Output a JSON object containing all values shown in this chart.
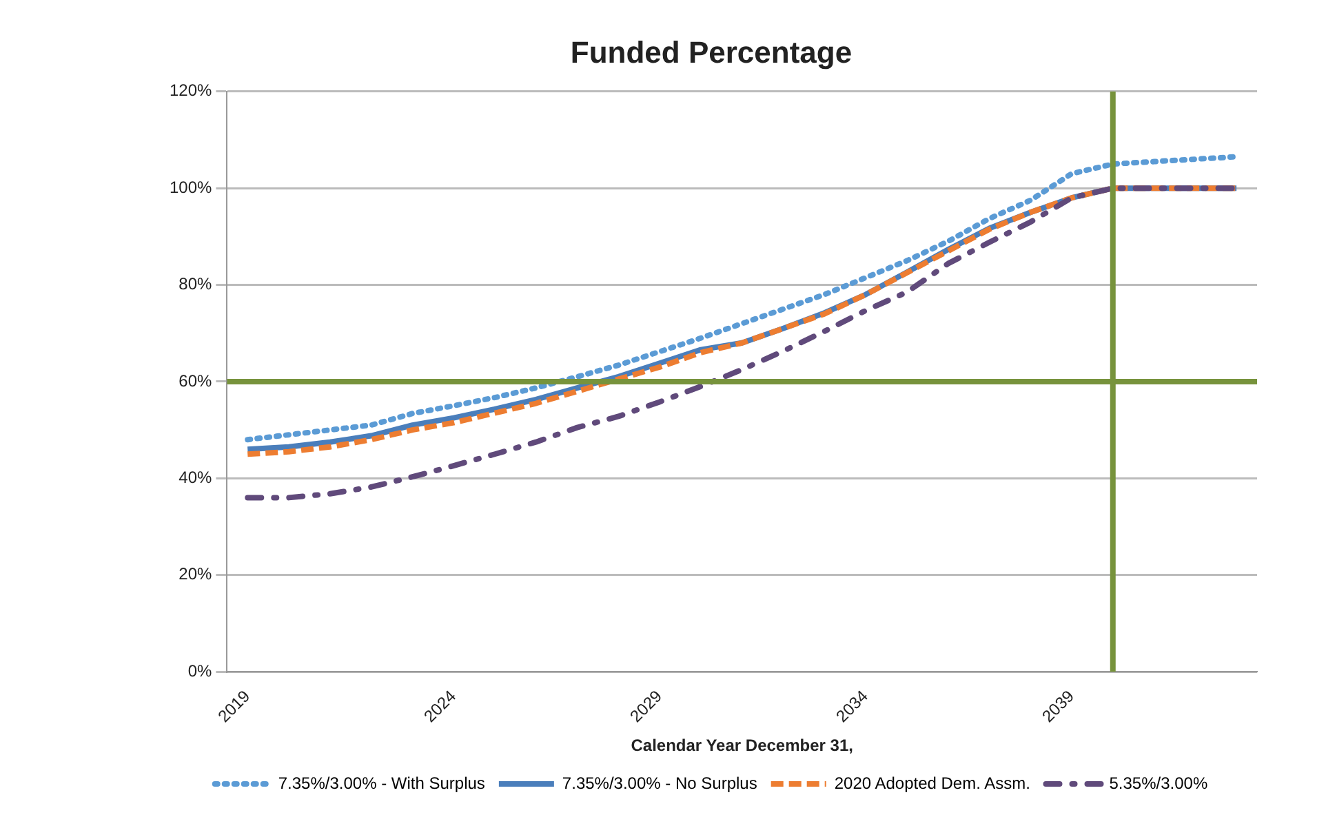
{
  "chart_data": {
    "type": "line",
    "title": "Funded Percentage",
    "xlabel": "Calendar Year December 31,",
    "x": [
      2019,
      2020,
      2021,
      2022,
      2023,
      2024,
      2025,
      2026,
      2027,
      2028,
      2029,
      2030,
      2031,
      2032,
      2033,
      2034,
      2035,
      2036,
      2037,
      2038,
      2039,
      2040,
      2041,
      2042,
      2043
    ],
    "series": [
      {
        "name": "7.35%/3.00% - With Surplus",
        "color": "#5b9bd5",
        "line_style": "dotted",
        "values": [
          48,
          49,
          50,
          51,
          53.4,
          55,
          56.7,
          58.7,
          61,
          63.4,
          66.2,
          69,
          72,
          75,
          78,
          81.5,
          85,
          89,
          93.7,
          97.5,
          103,
          105,
          105.5,
          106,
          106.5
        ]
      },
      {
        "name": "7.35%/3.00% - No Surplus",
        "color": "#4a7ebb",
        "line_style": "solid",
        "values": [
          46,
          46.5,
          47.5,
          48.8,
          51,
          52.5,
          54.3,
          56.3,
          58.7,
          61,
          63.8,
          66.6,
          68,
          71,
          74.2,
          78,
          82.6,
          87.3,
          91.7,
          95,
          98,
          100,
          100,
          100,
          100
        ]
      },
      {
        "name": "2020 Adopted Dem. Assm.",
        "color": "#ed7d31",
        "line_style": "dashed",
        "values": [
          45,
          45.5,
          46.5,
          48,
          50,
          51.5,
          53.5,
          55.5,
          58,
          60.5,
          63,
          66,
          68,
          71,
          74,
          78,
          82.5,
          87,
          91.5,
          95,
          98,
          100,
          100,
          100,
          100
        ]
      },
      {
        "name": "5.35%/3.00%",
        "color": "#604a7b",
        "line_style": "dashdot",
        "values": [
          36,
          36,
          36.8,
          38.2,
          40.3,
          42.6,
          45,
          47.5,
          50.5,
          52.8,
          55.8,
          59,
          62.5,
          66.3,
          70.4,
          74.7,
          78.5,
          84.4,
          88.8,
          93,
          98,
          100,
          100,
          100,
          100
        ]
      }
    ],
    "xlim": [
      2018.5,
      2043.5
    ],
    "xticks": [
      2019,
      2024,
      2029,
      2034,
      2039
    ],
    "ylim": [
      0,
      120
    ],
    "yticks": [
      {
        "value": 0,
        "label": "0%"
      },
      {
        "value": 20,
        "label": "20%"
      },
      {
        "value": 40,
        "label": "40%"
      },
      {
        "value": 60,
        "label": "60%"
      },
      {
        "value": 80,
        "label": "80%"
      },
      {
        "value": 100,
        "label": "100%"
      },
      {
        "value": 120,
        "label": "120%"
      }
    ],
    "ref_lines": [
      {
        "axis": "y",
        "value": 60,
        "color": "#77933c"
      },
      {
        "axis": "x",
        "value": 2040,
        "color": "#77933c"
      }
    ],
    "grid": "y",
    "legend": "bottom",
    "marker": "none"
  }
}
